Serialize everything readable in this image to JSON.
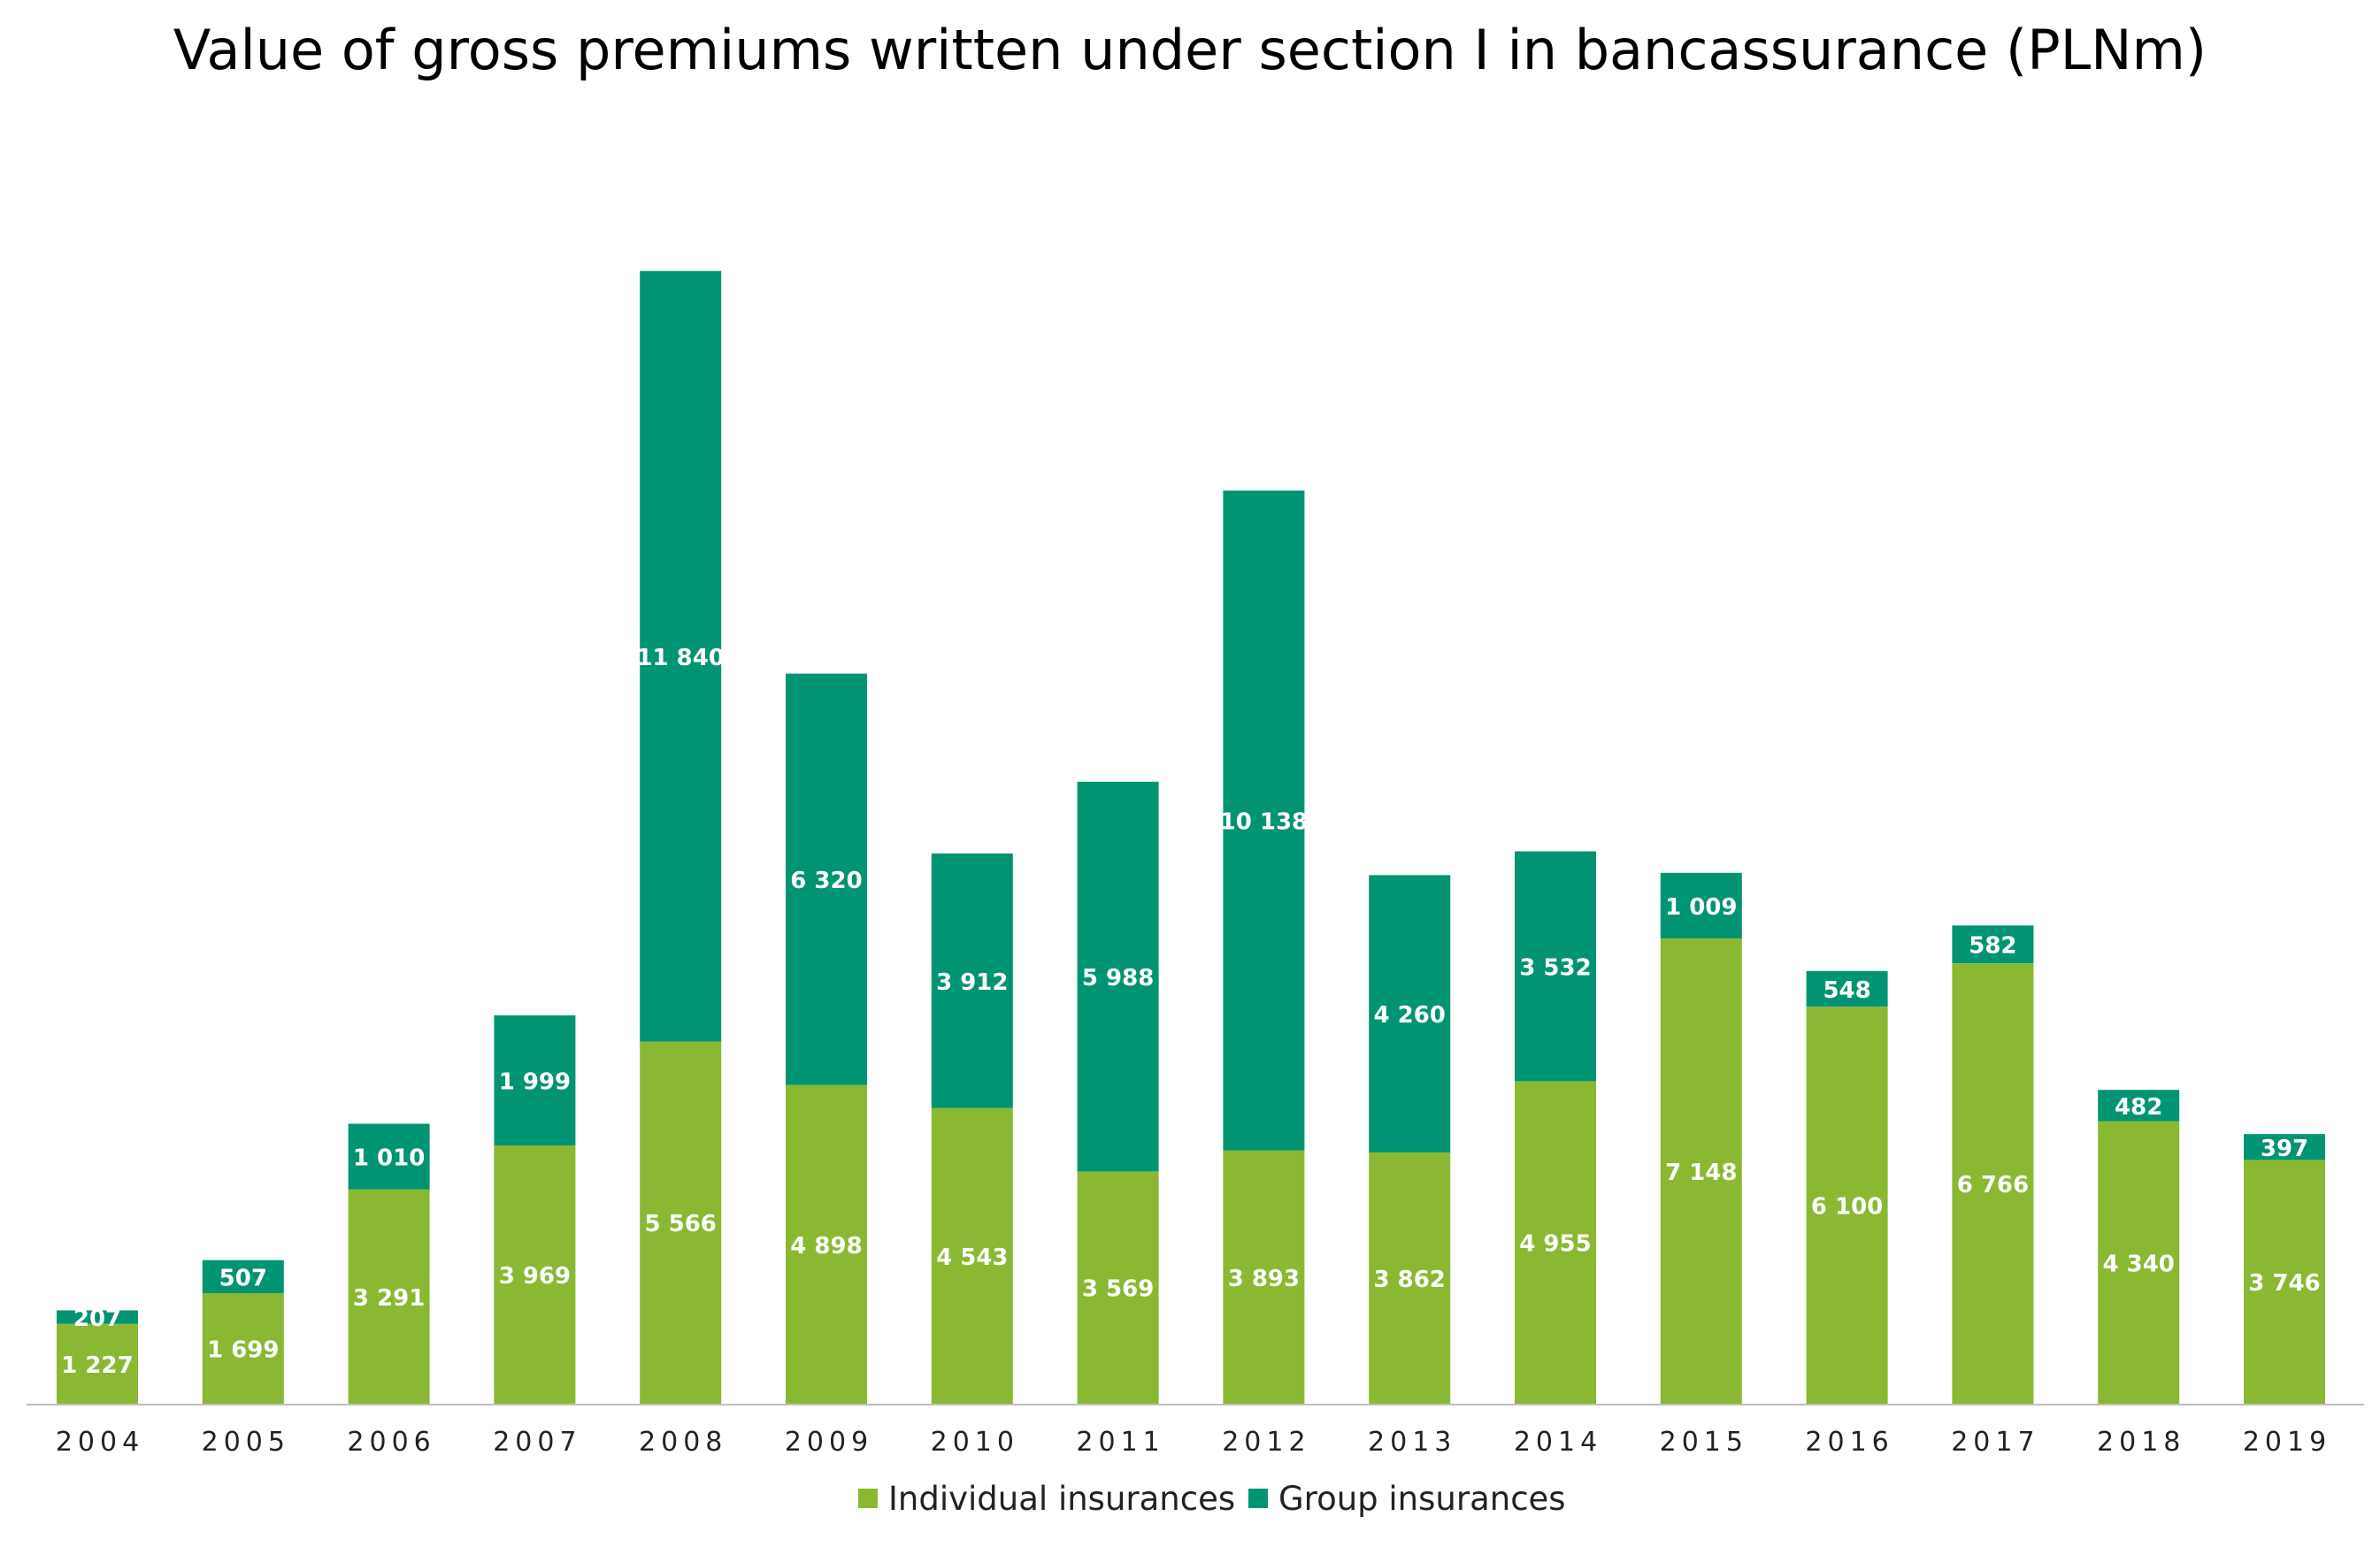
{
  "chart_data": {
    "type": "bar",
    "stacked": true,
    "title": "Value of gross premiums written under section I in bancassurance (PLNm)",
    "xlabel": "",
    "ylabel": "",
    "ylim": [
      0,
      18000
    ],
    "grid": false,
    "legend_position": "bottom",
    "categories": [
      "2004",
      "2005",
      "2006",
      "2007",
      "2008",
      "2009",
      "2010",
      "2011",
      "2012",
      "2013",
      "2014",
      "2015",
      "2016",
      "2017",
      "2018",
      "2019"
    ],
    "series": [
      {
        "name": "Individual insurances",
        "color": "#8AB833",
        "values": [
          1227,
          1699,
          3291,
          3969,
          5566,
          4898,
          4543,
          3569,
          3893,
          3862,
          4955,
          7148,
          6100,
          6766,
          4340,
          3746
        ],
        "labels": [
          "1 227",
          "1 699",
          "3 291",
          "3 969",
          "5 566",
          "4 898",
          "4 543",
          "3 569",
          "3 893",
          "3 862",
          "4 955",
          "7 148",
          "6 100",
          "6 766",
          "4 340",
          "3 746"
        ]
      },
      {
        "name": "Group insurances",
        "color": "#009473",
        "values": [
          207,
          507,
          1010,
          1999,
          11840,
          6320,
          3912,
          5988,
          10138,
          4260,
          3532,
          1009,
          548,
          582,
          482,
          397
        ],
        "labels": [
          "207",
          "507",
          "1 010",
          "1 999",
          "11 840",
          "6 320",
          "3 912",
          "5 988",
          "10 138",
          "4 260",
          "3 532",
          "1 009",
          "548",
          "582",
          "482",
          "397"
        ]
      }
    ]
  }
}
